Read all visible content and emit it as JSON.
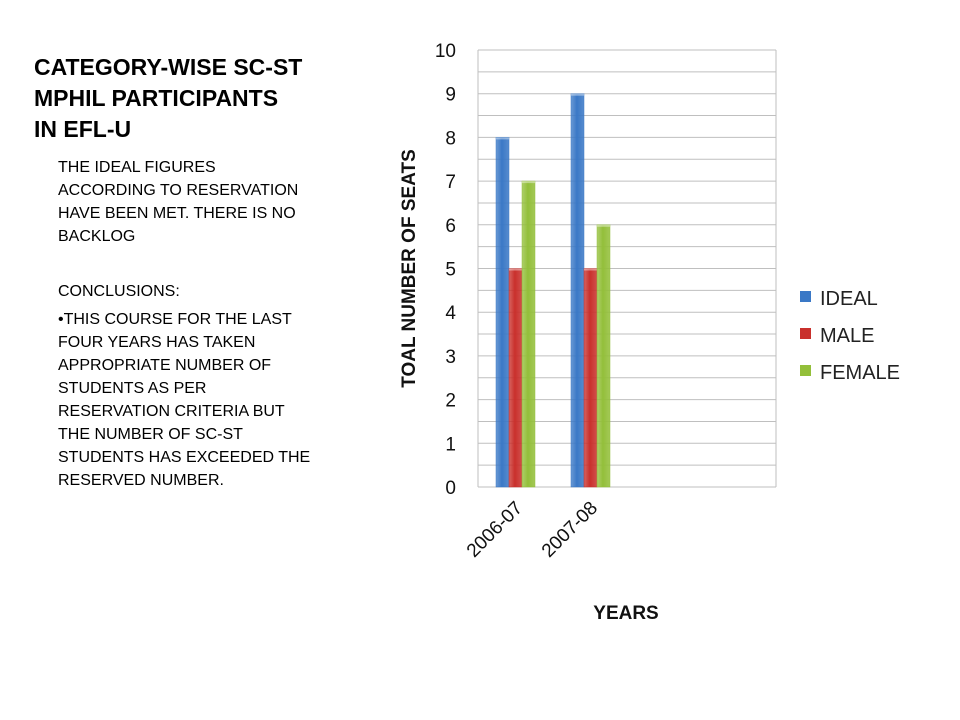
{
  "slide": {
    "title_lines": [
      "CATEGORY-WISE SC-ST",
      "MPHIL PARTICIPANTS",
      "IN EFL-U"
    ],
    "paragraph_lines": [
      "THE IDEAL FIGURES",
      "ACCORDING TO RESERVATION",
      "HAVE BEEN MET. THERE IS NO",
      "BACKLOG"
    ],
    "conclusions_heading": "CONCLUSIONS:",
    "conclusion_lines": [
      "•THIS COURSE FOR THE LAST",
      "FOUR YEARS HAS TAKEN",
      "APPROPRIATE NUMBER OF",
      "STUDENTS AS PER",
      "RESERVATION CRITERIA BUT",
      "THE NUMBER OF SC-ST",
      "STUDENTS HAS EXCEEDED THE",
      "RESERVED NUMBER."
    ]
  },
  "chart_data": {
    "type": "bar",
    "categories": [
      "2006-07",
      "2007-08"
    ],
    "series": [
      {
        "name": "IDEAL",
        "values": [
          8,
          9
        ],
        "color": "#3a78c6"
      },
      {
        "name": "MALE",
        "values": [
          5,
          5
        ],
        "color": "#c9302c"
      },
      {
        "name": "FEMALE",
        "values": [
          7,
          6
        ],
        "color": "#93bf3a"
      }
    ],
    "xlabel": "YEARS",
    "ylabel": "TOAL NUMBER OF SEATS",
    "ylim": [
      0,
      10
    ],
    "yticks": [
      0,
      1,
      2,
      3,
      4,
      5,
      6,
      7,
      8,
      9,
      10
    ],
    "grid": true,
    "legend_position": "right"
  }
}
